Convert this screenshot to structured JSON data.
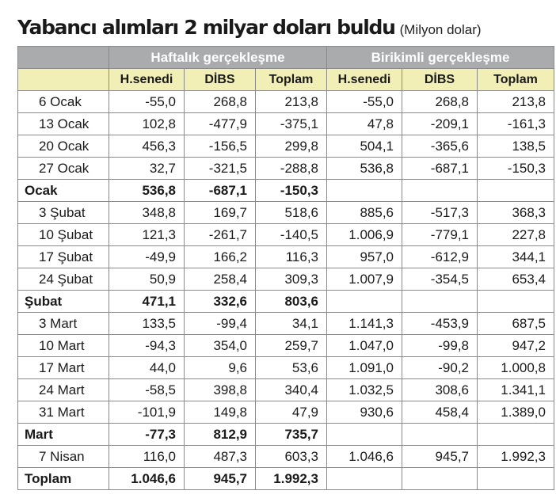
{
  "title": "Yabancı alımları 2 milyar doları buldu",
  "subtitle": "(Milyon dolar)",
  "groups": {
    "weekly": "Haftalık gerçekleşme",
    "cumulative": "Birikimli gerçekleşme"
  },
  "columns": [
    "H.senedi",
    "DİBS",
    "Toplam",
    "H.senedi",
    "DİBS",
    "Toplam"
  ],
  "rows": [
    {
      "label": "6 Ocak",
      "cells": [
        "-55,0",
        "268,8",
        "213,8",
        "-55,0",
        "268,8",
        "213,8"
      ],
      "total": false
    },
    {
      "label": "13 Ocak",
      "cells": [
        "102,8",
        "-477,9",
        "-375,1",
        "47,8",
        "-209,1",
        "-161,3"
      ],
      "total": false
    },
    {
      "label": "20 Ocak",
      "cells": [
        "456,3",
        "-156,5",
        "299,8",
        "504,1",
        "-365,6",
        "138,5"
      ],
      "total": false
    },
    {
      "label": "27 Ocak",
      "cells": [
        "32,7",
        "-321,5",
        "-288,8",
        "536,8",
        "-687,1",
        "-150,3"
      ],
      "total": false
    },
    {
      "label": "Ocak",
      "cells": [
        "536,8",
        "-687,1",
        "-150,3",
        "",
        "",
        ""
      ],
      "total": true
    },
    {
      "label": "3 Şubat",
      "cells": [
        "348,8",
        "169,7",
        "518,6",
        "885,6",
        "-517,3",
        "368,3"
      ],
      "total": false
    },
    {
      "label": "10 Şubat",
      "cells": [
        "121,3",
        "-261,7",
        "-140,5",
        "1.006,9",
        "-779,1",
        "227,8"
      ],
      "total": false
    },
    {
      "label": "17 Şubat",
      "cells": [
        "-49,9",
        "166,2",
        "116,3",
        "957,0",
        "-612,9",
        "344,1"
      ],
      "total": false
    },
    {
      "label": "24 Şubat",
      "cells": [
        "50,9",
        "258,4",
        "309,3",
        "1.007,9",
        "-354,5",
        "653,4"
      ],
      "total": false
    },
    {
      "label": "Şubat",
      "cells": [
        "471,1",
        "332,6",
        "803,6",
        "",
        "",
        ""
      ],
      "total": true
    },
    {
      "label": "3 Mart",
      "cells": [
        "133,5",
        "-99,4",
        "34,1",
        "1.141,3",
        "-453,9",
        "687,5"
      ],
      "total": false
    },
    {
      "label": "10 Mart",
      "cells": [
        "-94,3",
        "354,0",
        "259,7",
        "1.047,0",
        "-99,8",
        "947,2"
      ],
      "total": false
    },
    {
      "label": "17 Mart",
      "cells": [
        "44,0",
        "9,6",
        "53,6",
        "1.091,0",
        "-90,2",
        "1.000,8"
      ],
      "total": false
    },
    {
      "label": "24 Mart",
      "cells": [
        "-58,5",
        "398,8",
        "340,4",
        "1.032,5",
        "308,6",
        "1.341,1"
      ],
      "total": false
    },
    {
      "label": "31 Mart",
      "cells": [
        "-101,9",
        "149,8",
        "47,9",
        "930,6",
        "458,4",
        "1.389,0"
      ],
      "total": false
    },
    {
      "label": "Mart",
      "cells": [
        "-77,3",
        "812,9",
        "735,7",
        "",
        "",
        ""
      ],
      "total": true
    },
    {
      "label": "7 Nisan",
      "cells": [
        "116,0",
        "487,3",
        "603,3",
        "1.046,6",
        "945,7",
        "1.992,3"
      ],
      "total": false
    },
    {
      "label": "Toplam",
      "cells": [
        "1.046,6",
        "945,7",
        "1.992,3",
        "",
        "",
        ""
      ],
      "total": true
    }
  ]
}
